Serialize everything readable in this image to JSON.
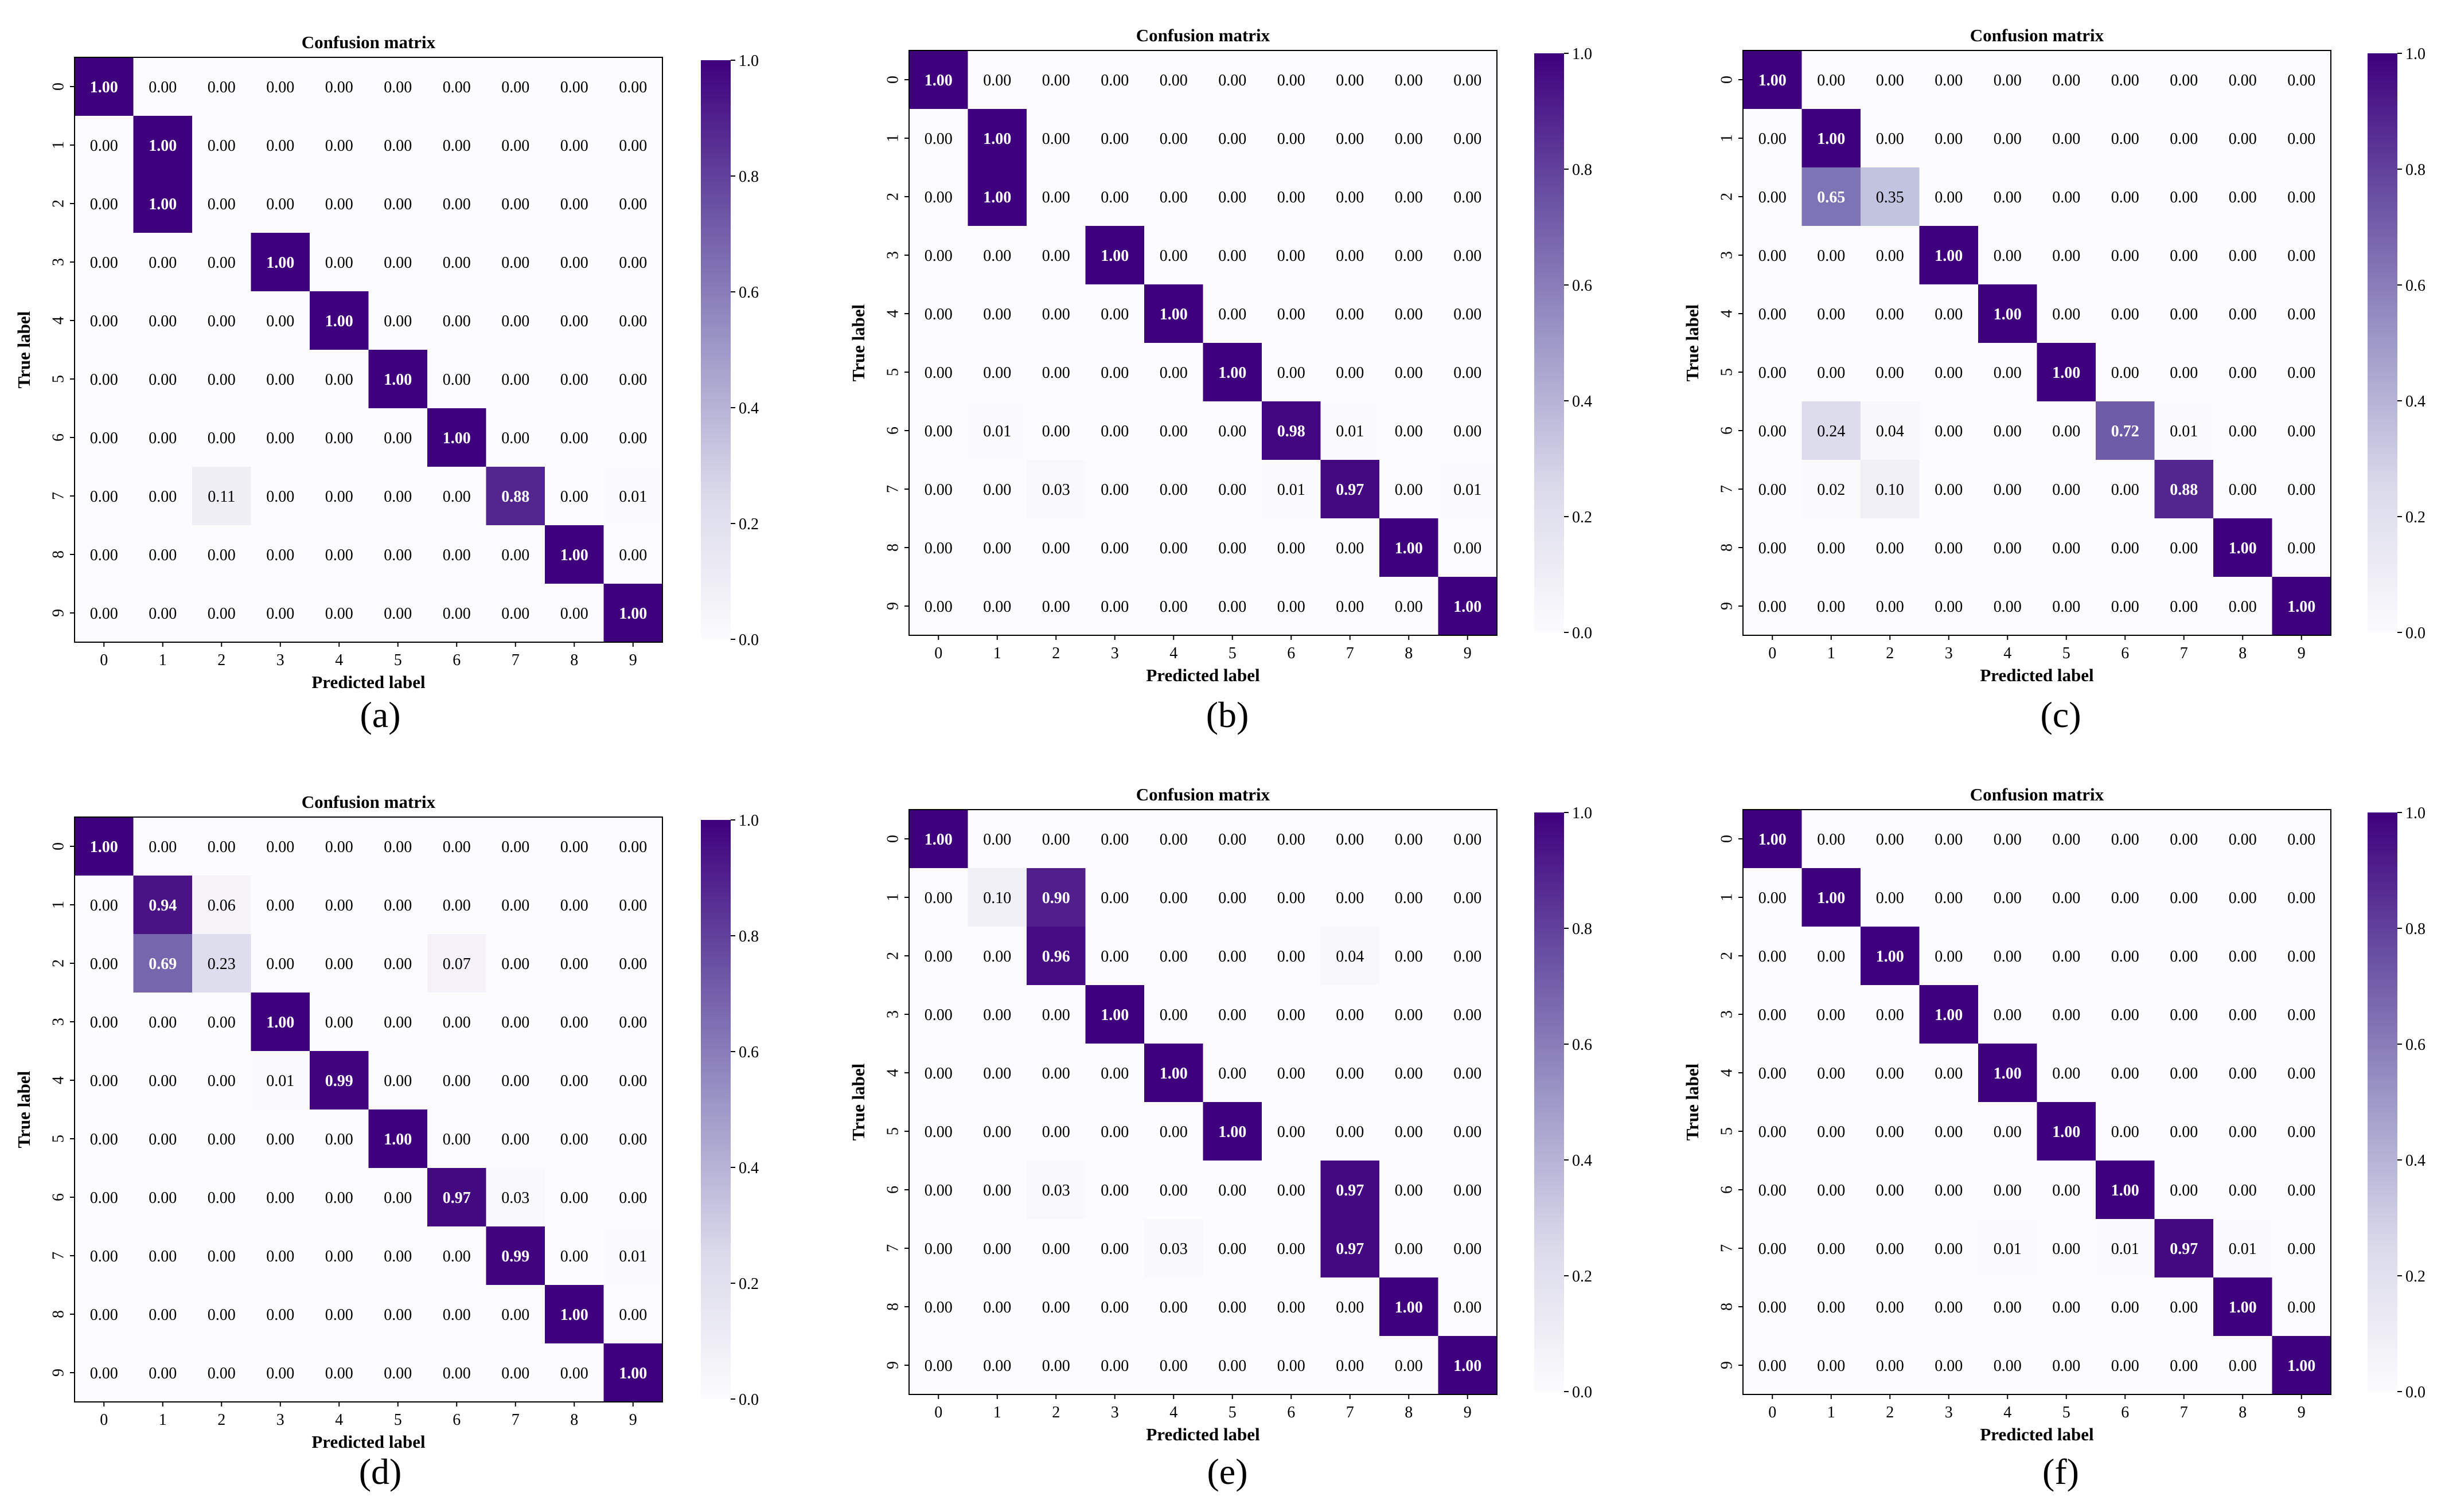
{
  "chart_data": [
    {
      "type": "heatmap",
      "panel_label": "(a)",
      "title": "Confusion matrix",
      "xlabel": "Predicted label",
      "ylabel": "True label",
      "x_ticks": [
        "0",
        "1",
        "2",
        "3",
        "4",
        "5",
        "6",
        "7",
        "8",
        "9"
      ],
      "y_ticks": [
        "0",
        "1",
        "2",
        "3",
        "4",
        "5",
        "6",
        "7",
        "8",
        "9"
      ],
      "colorbar": {
        "range": [
          0.0,
          1.0
        ],
        "ticks": [
          "0.0",
          "0.2",
          "0.4",
          "0.6",
          "0.8",
          "1.0"
        ],
        "colormap": "Purples"
      },
      "matrix": [
        [
          1.0,
          0.0,
          0.0,
          0.0,
          0.0,
          0.0,
          0.0,
          0.0,
          0.0,
          0.0
        ],
        [
          0.0,
          1.0,
          0.0,
          0.0,
          0.0,
          0.0,
          0.0,
          0.0,
          0.0,
          0.0
        ],
        [
          0.0,
          1.0,
          0.0,
          0.0,
          0.0,
          0.0,
          0.0,
          0.0,
          0.0,
          0.0
        ],
        [
          0.0,
          0.0,
          0.0,
          1.0,
          0.0,
          0.0,
          0.0,
          0.0,
          0.0,
          0.0
        ],
        [
          0.0,
          0.0,
          0.0,
          0.0,
          1.0,
          0.0,
          0.0,
          0.0,
          0.0,
          0.0
        ],
        [
          0.0,
          0.0,
          0.0,
          0.0,
          0.0,
          1.0,
          0.0,
          0.0,
          0.0,
          0.0
        ],
        [
          0.0,
          0.0,
          0.0,
          0.0,
          0.0,
          0.0,
          1.0,
          0.0,
          0.0,
          0.0
        ],
        [
          0.0,
          0.0,
          0.11,
          0.0,
          0.0,
          0.0,
          0.0,
          0.88,
          0.0,
          0.01
        ],
        [
          0.0,
          0.0,
          0.0,
          0.0,
          0.0,
          0.0,
          0.0,
          0.0,
          1.0,
          0.0
        ],
        [
          0.0,
          0.0,
          0.0,
          0.0,
          0.0,
          0.0,
          0.0,
          0.0,
          0.0,
          1.0
        ]
      ]
    },
    {
      "type": "heatmap",
      "panel_label": "(b)",
      "title": "Confusion matrix",
      "xlabel": "Predicted label",
      "ylabel": "True label",
      "x_ticks": [
        "0",
        "1",
        "2",
        "3",
        "4",
        "5",
        "6",
        "7",
        "8",
        "9"
      ],
      "y_ticks": [
        "0",
        "1",
        "2",
        "3",
        "4",
        "5",
        "6",
        "7",
        "8",
        "9"
      ],
      "colorbar": {
        "range": [
          0.0,
          1.0
        ],
        "ticks": [
          "0.0",
          "0.2",
          "0.4",
          "0.6",
          "0.8",
          "1.0"
        ],
        "colormap": "Purples"
      },
      "matrix": [
        [
          1.0,
          0.0,
          0.0,
          0.0,
          0.0,
          0.0,
          0.0,
          0.0,
          0.0,
          0.0
        ],
        [
          0.0,
          1.0,
          0.0,
          0.0,
          0.0,
          0.0,
          0.0,
          0.0,
          0.0,
          0.0
        ],
        [
          0.0,
          1.0,
          0.0,
          0.0,
          0.0,
          0.0,
          0.0,
          0.0,
          0.0,
          0.0
        ],
        [
          0.0,
          0.0,
          0.0,
          1.0,
          0.0,
          0.0,
          0.0,
          0.0,
          0.0,
          0.0
        ],
        [
          0.0,
          0.0,
          0.0,
          0.0,
          1.0,
          0.0,
          0.0,
          0.0,
          0.0,
          0.0
        ],
        [
          0.0,
          0.0,
          0.0,
          0.0,
          0.0,
          1.0,
          0.0,
          0.0,
          0.0,
          0.0
        ],
        [
          0.0,
          0.01,
          0.0,
          0.0,
          0.0,
          0.0,
          0.98,
          0.01,
          0.0,
          0.0
        ],
        [
          0.0,
          0.0,
          0.03,
          0.0,
          0.0,
          0.0,
          0.01,
          0.97,
          0.0,
          0.01
        ],
        [
          0.0,
          0.0,
          0.0,
          0.0,
          0.0,
          0.0,
          0.0,
          0.0,
          1.0,
          0.0
        ],
        [
          0.0,
          0.0,
          0.0,
          0.0,
          0.0,
          0.0,
          0.0,
          0.0,
          0.0,
          1.0
        ]
      ]
    },
    {
      "type": "heatmap",
      "panel_label": "(c)",
      "title": "Confusion matrix",
      "xlabel": "Predicted label",
      "ylabel": "True label",
      "x_ticks": [
        "0",
        "1",
        "2",
        "3",
        "4",
        "5",
        "6",
        "7",
        "8",
        "9"
      ],
      "y_ticks": [
        "0",
        "1",
        "2",
        "3",
        "4",
        "5",
        "6",
        "7",
        "8",
        "9"
      ],
      "colorbar": {
        "range": [
          0.0,
          1.0
        ],
        "ticks": [
          "0.0",
          "0.2",
          "0.4",
          "0.6",
          "0.8",
          "1.0"
        ],
        "colormap": "Purples"
      },
      "matrix": [
        [
          1.0,
          0.0,
          0.0,
          0.0,
          0.0,
          0.0,
          0.0,
          0.0,
          0.0,
          0.0
        ],
        [
          0.0,
          1.0,
          0.0,
          0.0,
          0.0,
          0.0,
          0.0,
          0.0,
          0.0,
          0.0
        ],
        [
          0.0,
          0.65,
          0.35,
          0.0,
          0.0,
          0.0,
          0.0,
          0.0,
          0.0,
          0.0
        ],
        [
          0.0,
          0.0,
          0.0,
          1.0,
          0.0,
          0.0,
          0.0,
          0.0,
          0.0,
          0.0
        ],
        [
          0.0,
          0.0,
          0.0,
          0.0,
          1.0,
          0.0,
          0.0,
          0.0,
          0.0,
          0.0
        ],
        [
          0.0,
          0.0,
          0.0,
          0.0,
          0.0,
          1.0,
          0.0,
          0.0,
          0.0,
          0.0
        ],
        [
          0.0,
          0.24,
          0.04,
          0.0,
          0.0,
          0.0,
          0.72,
          0.01,
          0.0,
          0.0
        ],
        [
          0.0,
          0.02,
          0.1,
          0.0,
          0.0,
          0.0,
          0.0,
          0.88,
          0.0,
          0.0
        ],
        [
          0.0,
          0.0,
          0.0,
          0.0,
          0.0,
          0.0,
          0.0,
          0.0,
          1.0,
          0.0
        ],
        [
          0.0,
          0.0,
          0.0,
          0.0,
          0.0,
          0.0,
          0.0,
          0.0,
          0.0,
          1.0
        ]
      ]
    },
    {
      "type": "heatmap",
      "panel_label": "(d)",
      "title": "Confusion matrix",
      "xlabel": "Predicted label",
      "ylabel": "True label",
      "x_ticks": [
        "0",
        "1",
        "2",
        "3",
        "4",
        "5",
        "6",
        "7",
        "8",
        "9"
      ],
      "y_ticks": [
        "0",
        "1",
        "2",
        "3",
        "4",
        "5",
        "6",
        "7",
        "8",
        "9"
      ],
      "colorbar": {
        "range": [
          0.0,
          1.0
        ],
        "ticks": [
          "0.0",
          "0.2",
          "0.4",
          "0.6",
          "0.8",
          "1.0"
        ],
        "colormap": "Purples"
      },
      "matrix": [
        [
          1.0,
          0.0,
          0.0,
          0.0,
          0.0,
          0.0,
          0.0,
          0.0,
          0.0,
          0.0
        ],
        [
          0.0,
          0.94,
          0.06,
          0.0,
          0.0,
          0.0,
          0.0,
          0.0,
          0.0,
          0.0
        ],
        [
          0.0,
          0.69,
          0.23,
          0.0,
          0.0,
          0.0,
          0.07,
          0.0,
          0.0,
          0.0
        ],
        [
          0.0,
          0.0,
          0.0,
          1.0,
          0.0,
          0.0,
          0.0,
          0.0,
          0.0,
          0.0
        ],
        [
          0.0,
          0.0,
          0.0,
          0.01,
          0.99,
          0.0,
          0.0,
          0.0,
          0.0,
          0.0
        ],
        [
          0.0,
          0.0,
          0.0,
          0.0,
          0.0,
          1.0,
          0.0,
          0.0,
          0.0,
          0.0
        ],
        [
          0.0,
          0.0,
          0.0,
          0.0,
          0.0,
          0.0,
          0.97,
          0.03,
          0.0,
          0.0
        ],
        [
          0.0,
          0.0,
          0.0,
          0.0,
          0.0,
          0.0,
          0.0,
          0.99,
          0.0,
          0.01
        ],
        [
          0.0,
          0.0,
          0.0,
          0.0,
          0.0,
          0.0,
          0.0,
          0.0,
          1.0,
          0.0
        ],
        [
          0.0,
          0.0,
          0.0,
          0.0,
          0.0,
          0.0,
          0.0,
          0.0,
          0.0,
          1.0
        ]
      ]
    },
    {
      "type": "heatmap",
      "panel_label": "(e)",
      "title": "Confusion matrix",
      "xlabel": "Predicted label",
      "ylabel": "True label",
      "x_ticks": [
        "0",
        "1",
        "2",
        "3",
        "4",
        "5",
        "6",
        "7",
        "8",
        "9"
      ],
      "y_ticks": [
        "0",
        "1",
        "2",
        "3",
        "4",
        "5",
        "6",
        "7",
        "8",
        "9"
      ],
      "colorbar": {
        "range": [
          0.0,
          1.0
        ],
        "ticks": [
          "0.0",
          "0.2",
          "0.4",
          "0.6",
          "0.8",
          "1.0"
        ],
        "colormap": "Purples"
      },
      "matrix": [
        [
          1.0,
          0.0,
          0.0,
          0.0,
          0.0,
          0.0,
          0.0,
          0.0,
          0.0,
          0.0
        ],
        [
          0.0,
          0.1,
          0.9,
          0.0,
          0.0,
          0.0,
          0.0,
          0.0,
          0.0,
          0.0
        ],
        [
          0.0,
          0.0,
          0.96,
          0.0,
          0.0,
          0.0,
          0.0,
          0.04,
          0.0,
          0.0
        ],
        [
          0.0,
          0.0,
          0.0,
          1.0,
          0.0,
          0.0,
          0.0,
          0.0,
          0.0,
          0.0
        ],
        [
          0.0,
          0.0,
          0.0,
          0.0,
          1.0,
          0.0,
          0.0,
          0.0,
          0.0,
          0.0
        ],
        [
          0.0,
          0.0,
          0.0,
          0.0,
          0.0,
          1.0,
          0.0,
          0.0,
          0.0,
          0.0
        ],
        [
          0.0,
          0.0,
          0.03,
          0.0,
          0.0,
          0.0,
          0.0,
          0.97,
          0.0,
          0.0
        ],
        [
          0.0,
          0.0,
          0.0,
          0.0,
          0.03,
          0.0,
          0.0,
          0.97,
          0.0,
          0.0
        ],
        [
          0.0,
          0.0,
          0.0,
          0.0,
          0.0,
          0.0,
          0.0,
          0.0,
          1.0,
          0.0
        ],
        [
          0.0,
          0.0,
          0.0,
          0.0,
          0.0,
          0.0,
          0.0,
          0.0,
          0.0,
          1.0
        ]
      ]
    },
    {
      "type": "heatmap",
      "panel_label": "(f)",
      "title": "Confusion matrix",
      "xlabel": "Predicted label",
      "ylabel": "True label",
      "x_ticks": [
        "0",
        "1",
        "2",
        "3",
        "4",
        "5",
        "6",
        "7",
        "8",
        "9"
      ],
      "y_ticks": [
        "0",
        "1",
        "2",
        "3",
        "4",
        "5",
        "6",
        "7",
        "8",
        "9"
      ],
      "colorbar": {
        "range": [
          0.0,
          1.0
        ],
        "ticks": [
          "0.0",
          "0.2",
          "0.4",
          "0.6",
          "0.8",
          "1.0"
        ],
        "colormap": "Purples"
      },
      "matrix": [
        [
          1.0,
          0.0,
          0.0,
          0.0,
          0.0,
          0.0,
          0.0,
          0.0,
          0.0,
          0.0
        ],
        [
          0.0,
          1.0,
          0.0,
          0.0,
          0.0,
          0.0,
          0.0,
          0.0,
          0.0,
          0.0
        ],
        [
          0.0,
          0.0,
          1.0,
          0.0,
          0.0,
          0.0,
          0.0,
          0.0,
          0.0,
          0.0
        ],
        [
          0.0,
          0.0,
          0.0,
          1.0,
          0.0,
          0.0,
          0.0,
          0.0,
          0.0,
          0.0
        ],
        [
          0.0,
          0.0,
          0.0,
          0.0,
          1.0,
          0.0,
          0.0,
          0.0,
          0.0,
          0.0
        ],
        [
          0.0,
          0.0,
          0.0,
          0.0,
          0.0,
          1.0,
          0.0,
          0.0,
          0.0,
          0.0
        ],
        [
          0.0,
          0.0,
          0.0,
          0.0,
          0.0,
          0.0,
          1.0,
          0.0,
          0.0,
          0.0
        ],
        [
          0.0,
          0.0,
          0.0,
          0.0,
          0.01,
          0.0,
          0.01,
          0.97,
          0.01,
          0.0
        ],
        [
          0.0,
          0.0,
          0.0,
          0.0,
          0.0,
          0.0,
          0.0,
          0.0,
          1.0,
          0.0
        ],
        [
          0.0,
          0.0,
          0.0,
          0.0,
          0.0,
          0.0,
          0.0,
          0.0,
          0.0,
          1.0
        ]
      ]
    }
  ]
}
